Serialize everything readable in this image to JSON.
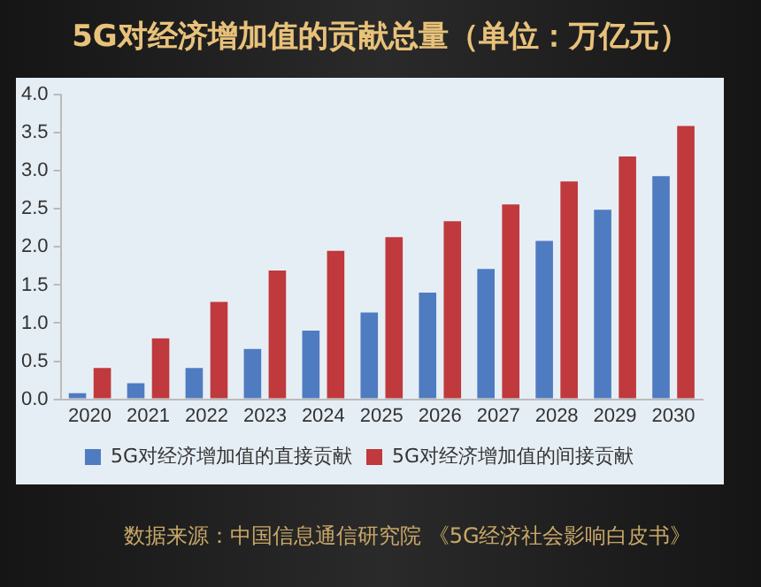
{
  "chart_data": {
    "type": "bar",
    "title": "5G对经济增加值的贡献总量（单位：万亿元）",
    "categories": [
      "2020",
      "2021",
      "2022",
      "2023",
      "2024",
      "2025",
      "2026",
      "2027",
      "2028",
      "2029",
      "2030"
    ],
    "series": [
      {
        "name": "5G对经济增加值的直接贡献",
        "color": "#4f7bc1",
        "values": [
          0.08,
          0.21,
          0.41,
          0.66,
          0.9,
          1.14,
          1.4,
          1.71,
          2.08,
          2.49,
          2.93
        ]
      },
      {
        "name": "5G对经济增加值的间接贡献",
        "color": "#c0393c",
        "values": [
          0.41,
          0.8,
          1.28,
          1.69,
          1.95,
          2.13,
          2.34,
          2.56,
          2.86,
          3.19,
          3.59
        ]
      }
    ],
    "ylim": [
      0,
      4
    ],
    "yticks": [
      {
        "value": 0,
        "label": "0.0"
      },
      0.5,
      {
        "value": 1,
        "label": "1.0"
      },
      1.5,
      {
        "value": 2,
        "label": "2.0"
      },
      2.5,
      {
        "value": 3,
        "label": "3.0"
      },
      3.5,
      {
        "value": 4,
        "label": "4.0"
      }
    ],
    "grid": false,
    "legend": "bottom",
    "annotations": [
      "数据来源：中国信息通信研究院 《5G经济社会影响白皮书》"
    ]
  }
}
